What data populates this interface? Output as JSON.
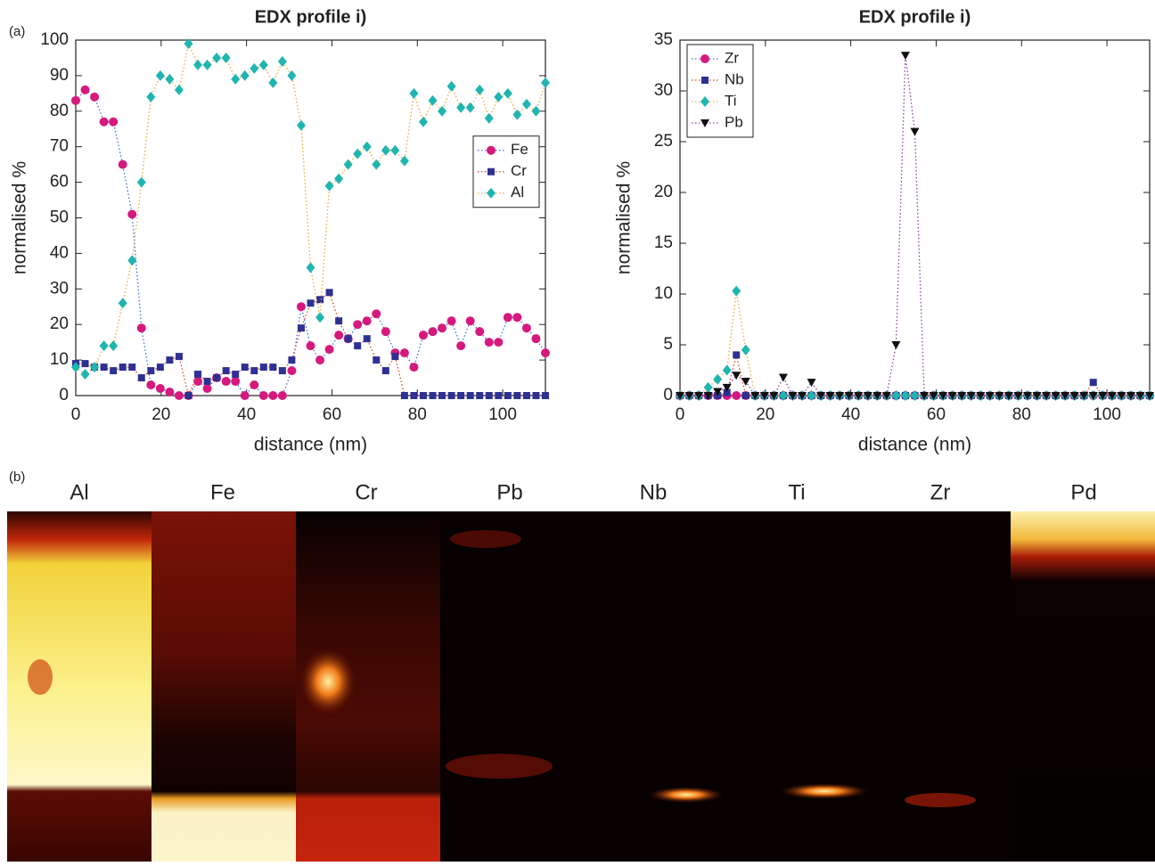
{
  "panel_labels": [
    "(a)",
    "(b)"
  ],
  "chart_data": [
    {
      "type": "scatter-line",
      "title": "EDX profile i)",
      "xlabel": "distance (nm)",
      "ylabel": "normalised %",
      "xlim": [
        0,
        110
      ],
      "xticks": [
        0,
        20,
        40,
        60,
        80,
        100
      ],
      "ylim": [
        0,
        100
      ],
      "yticks": [
        0,
        10,
        20,
        30,
        40,
        50,
        60,
        70,
        80,
        90,
        100
      ],
      "legend": "east",
      "x": [
        0,
        2.2,
        4.4,
        6.6,
        8.8,
        11,
        13.2,
        15.4,
        17.6,
        19.8,
        22,
        24.2,
        26.4,
        28.6,
        30.8,
        33,
        35.2,
        37.4,
        39.6,
        41.8,
        44,
        46.2,
        48.4,
        50.6,
        52.8,
        55,
        57.2,
        59.4,
        61.6,
        63.8,
        66,
        68.2,
        70.4,
        72.6,
        74.8,
        77,
        79.2,
        81.4,
        83.6,
        85.8,
        88,
        90.2,
        92.4,
        94.6,
        96.8,
        99,
        101.2,
        103.4,
        105.6,
        107.8,
        110
      ],
      "series": [
        {
          "name": "Fe",
          "color": "#d6197d",
          "line_color": "#3b6fd6",
          "marker": "circle",
          "values": [
            83,
            86,
            84,
            77,
            77,
            65,
            51,
            19,
            3,
            2,
            1,
            0,
            0,
            4,
            2,
            5,
            4,
            4,
            0,
            3,
            0,
            0,
            0,
            7,
            25,
            14,
            10,
            13,
            17,
            16,
            20,
            21,
            23,
            18,
            12,
            12,
            8,
            17,
            18,
            19,
            21,
            14,
            21,
            18,
            15,
            15,
            22,
            22,
            19,
            16,
            12
          ]
        },
        {
          "name": "Cr",
          "color": "#2e3192",
          "line_color": "#d9452b",
          "marker": "square",
          "values": [
            9,
            9,
            8,
            8,
            7,
            8,
            8,
            5,
            7,
            8,
            10,
            11,
            0,
            6,
            4,
            5,
            7,
            6,
            8,
            7,
            8,
            8,
            7,
            10,
            19,
            26,
            27,
            29,
            21,
            16,
            14,
            16,
            10,
            7,
            11,
            0,
            0,
            0,
            0,
            0,
            0,
            0,
            0,
            0,
            0,
            0,
            0,
            0,
            0,
            0,
            0
          ]
        },
        {
          "name": "Al",
          "color": "#1fb5b0",
          "line_color": "#eda73a",
          "marker": "diamond",
          "values": [
            8,
            6,
            8,
            14,
            14,
            26,
            38,
            60,
            84,
            90,
            89,
            86,
            99,
            93,
            93,
            95,
            95,
            89,
            90,
            92,
            93,
            88,
            94,
            90,
            76,
            36,
            22,
            59,
            61,
            65,
            68,
            70,
            65,
            69,
            69,
            66,
            85,
            77,
            83,
            80,
            87,
            81,
            81,
            86,
            78,
            84,
            85,
            79,
            82,
            80,
            88
          ]
        }
      ]
    },
    {
      "type": "scatter-line",
      "title": "EDX profile i)",
      "xlabel": "distance (nm)",
      "ylabel": "normalised %",
      "xlim": [
        0,
        110
      ],
      "xticks": [
        0,
        20,
        40,
        60,
        80,
        100
      ],
      "ylim": [
        0,
        35
      ],
      "yticks": [
        0,
        5,
        10,
        15,
        20,
        25,
        30,
        35
      ],
      "legend": "upper-left",
      "x": [
        0,
        2.2,
        4.4,
        6.6,
        8.8,
        11,
        13.2,
        15.4,
        17.6,
        19.8,
        22,
        24.2,
        26.4,
        28.6,
        30.8,
        33,
        35.2,
        37.4,
        39.6,
        41.8,
        44,
        46.2,
        48.4,
        50.6,
        52.8,
        55,
        57.2,
        59.4,
        61.6,
        63.8,
        66,
        68.2,
        70.4,
        72.6,
        74.8,
        77,
        79.2,
        81.4,
        83.6,
        85.8,
        88,
        90.2,
        92.4,
        94.6,
        96.8,
        99,
        101.2,
        103.4,
        105.6,
        107.8,
        110
      ],
      "series": [
        {
          "name": "Zr",
          "color": "#d6197d",
          "line_color": "#3b6fd6",
          "marker": "circle",
          "values": [
            0,
            0,
            0,
            0,
            0,
            0,
            0,
            0,
            0,
            0,
            0,
            0,
            0,
            0,
            0,
            0,
            0,
            0,
            0,
            0,
            0,
            0,
            0,
            0,
            0,
            0,
            0,
            0,
            0,
            0,
            0,
            0,
            0,
            0,
            0,
            0,
            0,
            0,
            0,
            0,
            0,
            0,
            0,
            0,
            0,
            0,
            0,
            0,
            0,
            0,
            0
          ]
        },
        {
          "name": "Nb",
          "color": "#2e3192",
          "line_color": "#d9452b",
          "marker": "square",
          "values": [
            0,
            0,
            0,
            0,
            0,
            0.3,
            4,
            0,
            0,
            0,
            0,
            0,
            0,
            0,
            0,
            0,
            0,
            0,
            0,
            0,
            0,
            0,
            0,
            0,
            0,
            0,
            0,
            0,
            0,
            0,
            0,
            0,
            0,
            0,
            0,
            0,
            0,
            0,
            0,
            0,
            0,
            0,
            0,
            0,
            1.3,
            0,
            0,
            0,
            0,
            0,
            0
          ]
        },
        {
          "name": "Ti",
          "color": "#1fb5b0",
          "line_color": "#eda73a",
          "marker": "diamond",
          "values": [
            0,
            0,
            0,
            0.8,
            1.6,
            2.5,
            10.3,
            4.5,
            0,
            0,
            0,
            0,
            0,
            0,
            0,
            0,
            0,
            0,
            0,
            0,
            0,
            0,
            0,
            0,
            0,
            0,
            0,
            0,
            0,
            0,
            0,
            0,
            0,
            0,
            0,
            0,
            0,
            0,
            0,
            0,
            0,
            0,
            0,
            0,
            0,
            0,
            0,
            0,
            0,
            0,
            0
          ]
        },
        {
          "name": "Pb",
          "color": "#111111",
          "line_color": "#8e3fa8",
          "marker": "triangle-down",
          "values": [
            0,
            0,
            0,
            0,
            0.4,
            0.8,
            2,
            1.4,
            0,
            0,
            0,
            1.8,
            0,
            0,
            1.3,
            0,
            0,
            0,
            0,
            0,
            0,
            0,
            0,
            5,
            33.5,
            26,
            0,
            0,
            0,
            0,
            0,
            0,
            0,
            0,
            0,
            0,
            0,
            0,
            0,
            0,
            0,
            0,
            0,
            0,
            0,
            0,
            0,
            0,
            0,
            0,
            0
          ]
        }
      ]
    }
  ],
  "maps": {
    "labels": [
      "Al",
      "Fe",
      "Cr",
      "Pb",
      "Nb",
      "Ti",
      "Zr",
      "Pd"
    ]
  }
}
